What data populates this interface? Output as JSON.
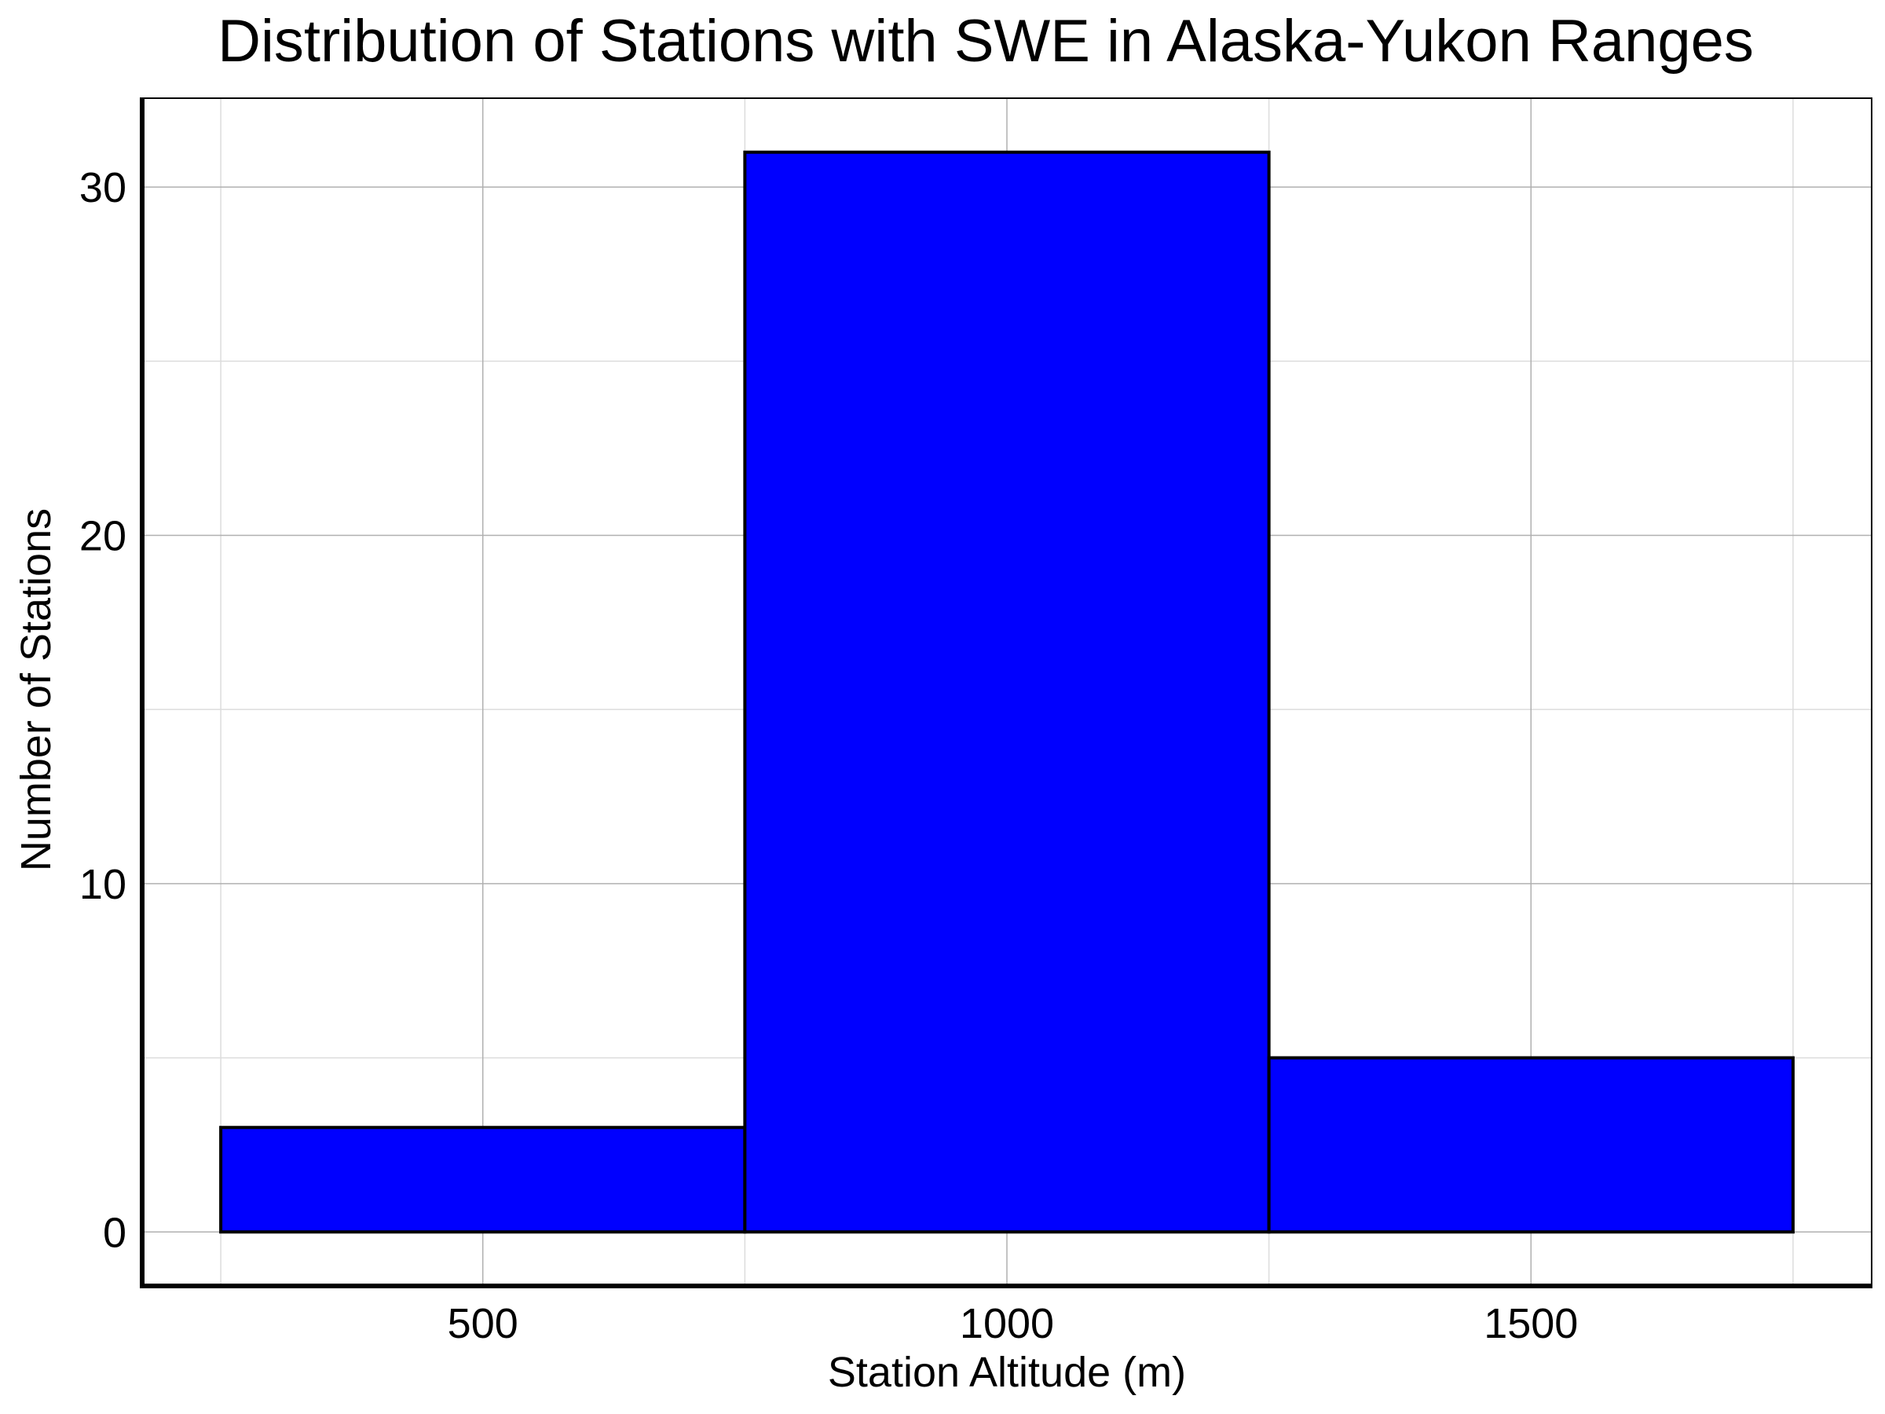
{
  "chart_data": {
    "type": "bar",
    "title": "Distribution of Stations with SWE in Alaska-Yukon Ranges",
    "xlabel": "Station Altitude (m)",
    "ylabel": "Number of Stations",
    "bins": [
      {
        "x0": 250,
        "x1": 750,
        "count": 3
      },
      {
        "x0": 750,
        "x1": 1250,
        "count": 31
      },
      {
        "x0": 1250,
        "x1": 1750,
        "count": 5
      }
    ],
    "xlim": [
      175,
      1825
    ],
    "ylim": [
      -1.55,
      32.55
    ],
    "xticks": [
      500,
      1000,
      1500
    ],
    "yticks": [
      0,
      10,
      20,
      30
    ],
    "minor_xticks": [
      250,
      750,
      1250,
      1750
    ],
    "minor_yticks": [
      5,
      15,
      25
    ],
    "grid": true,
    "bar_color": "#0000ff",
    "edge_color": "#000000"
  }
}
